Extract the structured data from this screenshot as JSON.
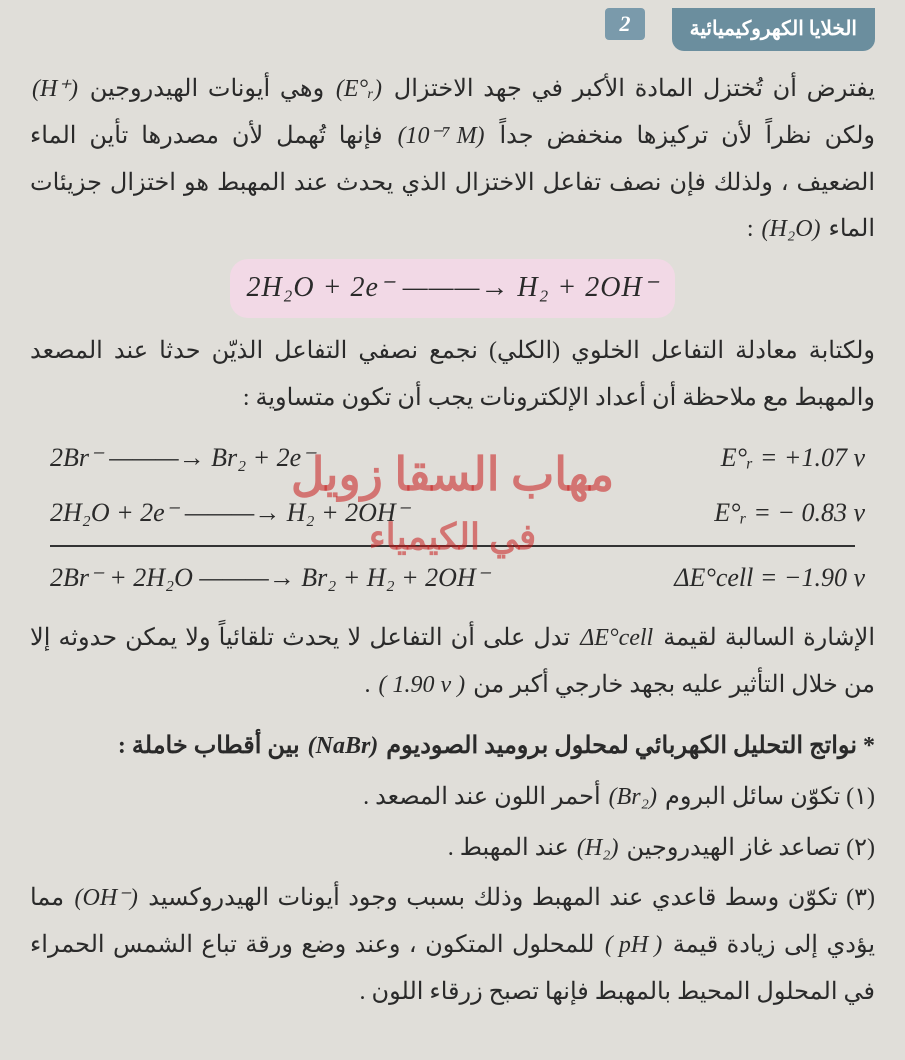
{
  "header": {
    "tab_title": "الخلايا الكهروكيميائية",
    "section_number": "2"
  },
  "paragraphs": {
    "p1_a": "يفترض أن تُختزل المادة الأكبر في جهد الاختزال ",
    "p1_math1": "(E°ᵣ)",
    "p1_b": " وهي أيونات الهيدروجين ",
    "p1_math2": "(H⁺)",
    "p1_c": " ولكن نظراً لأن تركيزها منخفض جداً ",
    "p1_math3": "(10⁻⁷ M)",
    "p1_d": " فإنها تُهمل لأن مصدرها تأين الماء الضعيف ، ولذلك فإن نصف تفاعل الاختزال الذي يحدث عند المهبط هو اختزال جزيئات الماء ",
    "p1_math4": "(H₂O)",
    "p1_e": " :"
  },
  "equation_highlight": "2H₂O  +  2e⁻ ———→  H₂ + 2OH⁻",
  "paragraphs2": {
    "p2": "ولكتابة معادلة التفاعل الخلوي (الكلي) نجمع نصفي التفاعل الذيّن حدثا عند المصعد والمهبط مع ملاحظة أن أعداد الإلكترونات يجب أن تكون متساوية :"
  },
  "eq_block": {
    "row1_left": "2Br⁻ ———→ Br₂ + 2e⁻",
    "row1_right": "E°ᵣ = +1.07 v",
    "row2_left": "2H₂O  +  2e⁻ ———→  H₂ + 2OH⁻",
    "row2_right": "E°ᵣ = − 0.83 v",
    "row3_left": "2Br⁻ + 2H₂O ———→ Br₂ + H₂ + 2OH⁻",
    "row3_right": "ΔE°cell = −1.90 v"
  },
  "paragraphs3": {
    "p3_a": "الإشارة السالبة لقيمة ",
    "p3_math1": "ΔE°cell",
    "p3_b": " تدل على أن التفاعل لا يحدث تلقائياً ولا يمكن حدوثه إلا من خلال التأثير عليه بجهد خارجي أكبر من ",
    "p3_math2": "( 1.90 v )",
    "p3_c": " ."
  },
  "heading": {
    "h_a": "* نواتج التحليل الكهربائي لمحلول بروميد الصوديوم ",
    "h_math": "(NaBr)",
    "h_b": " بين أقطاب خاملة :"
  },
  "list": {
    "i1_a": "(١) تكوّن سائل البروم ",
    "i1_math": "(Br₂)",
    "i1_b": " أحمر اللون عند المصعد .",
    "i2_a": "(٢) تصاعد غاز الهيدروجين ",
    "i2_math": "(H₂)",
    "i2_b": " عند المهبط .",
    "i3_a": "(٣) تكوّن وسط قاعدي عند المهبط وذلك بسبب وجود أيونات الهيدروكسيد ",
    "i3_math1": "(OH⁻)",
    "i3_b": " مما يؤدي إلى زيادة قيمة ",
    "i3_math2": "( pH )",
    "i3_c": " للمحلول المتكون ، وعند وضع ورقة تباع الشمس الحمراء في المحلول المحيط بالمهبط فإنها تصبح زرقاء اللون ."
  },
  "watermark": {
    "line1": "مهاب السقا زويل",
    "line2": "في الكيمياء"
  }
}
